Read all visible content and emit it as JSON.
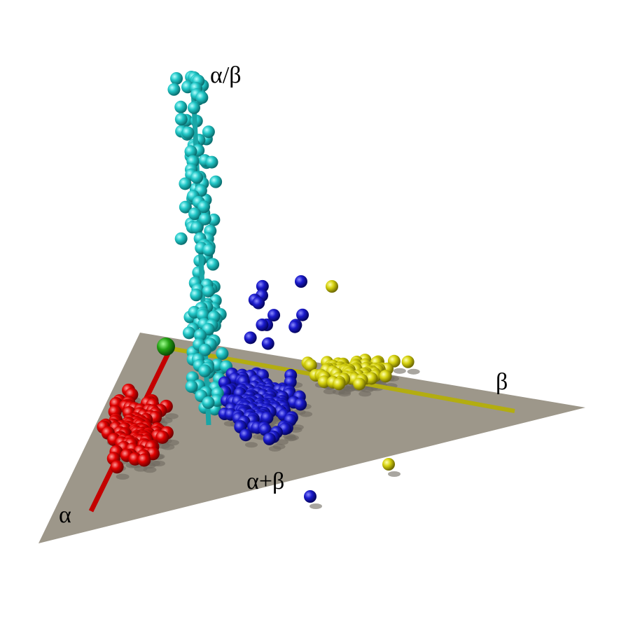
{
  "labels": {
    "alpha_beta": "α/β",
    "beta": "β",
    "alpha_plus_beta": "α+β",
    "alpha": "α"
  }
}
